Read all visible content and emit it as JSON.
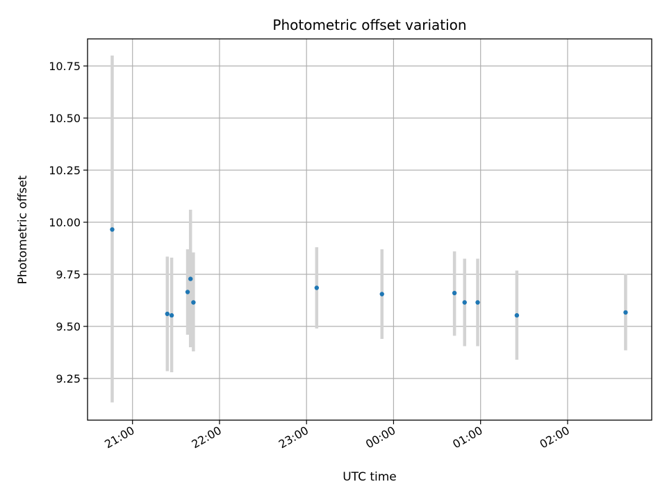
{
  "chart_data": {
    "type": "scatter",
    "title": "Photometric offset variation",
    "xlabel": "UTC time",
    "ylabel": "Photometric offset",
    "x_axis": {
      "kind": "time",
      "start": "20:29",
      "end": "02:58",
      "ticks": [
        {
          "t": "21:00",
          "label": "21:00"
        },
        {
          "t": "22:00",
          "label": "22:00"
        },
        {
          "t": "23:00",
          "label": "23:00"
        },
        {
          "t": "00:00",
          "label": "00:00"
        },
        {
          "t": "01:00",
          "label": "01:00"
        },
        {
          "t": "02:00",
          "label": "02:00"
        }
      ]
    },
    "y_axis": {
      "ylim": [
        9.05,
        10.88
      ],
      "ticks": [
        {
          "v": 9.25,
          "label": "9.25"
        },
        {
          "v": 9.5,
          "label": "9.50"
        },
        {
          "v": 9.75,
          "label": "9.75"
        },
        {
          "v": 10.0,
          "label": "10.00"
        },
        {
          "v": 10.25,
          "label": "10.25"
        },
        {
          "v": 10.5,
          "label": "10.50"
        },
        {
          "v": 10.75,
          "label": "10.75"
        }
      ]
    },
    "grid": true,
    "colors": {
      "point": "#1f77b4",
      "errorbar": "#d3d3d3",
      "grid": "#b0b0b0"
    },
    "points": [
      {
        "t": "20:46",
        "y": 9.965,
        "low": 9.135,
        "high": 10.8
      },
      {
        "t": "21:24",
        "y": 9.56,
        "low": 9.285,
        "high": 9.835
      },
      {
        "t": "21:27",
        "y": 9.553,
        "low": 9.28,
        "high": 9.83
      },
      {
        "t": "21:38",
        "y": 9.665,
        "low": 9.46,
        "high": 9.87
      },
      {
        "t": "21:40",
        "y": 9.728,
        "low": 9.4,
        "high": 10.06
      },
      {
        "t": "21:42",
        "y": 9.615,
        "low": 9.38,
        "high": 9.855
      },
      {
        "t": "23:07",
        "y": 9.685,
        "low": 9.49,
        "high": 9.88
      },
      {
        "t": "23:52",
        "y": 9.655,
        "low": 9.44,
        "high": 9.87
      },
      {
        "t": "00:42",
        "y": 9.66,
        "low": 9.455,
        "high": 9.86
      },
      {
        "t": "00:49",
        "y": 9.615,
        "low": 9.405,
        "high": 9.825
      },
      {
        "t": "00:58",
        "y": 9.615,
        "low": 9.405,
        "high": 9.825
      },
      {
        "t": "01:25",
        "y": 9.553,
        "low": 9.34,
        "high": 9.768
      },
      {
        "t": "02:40",
        "y": 9.567,
        "low": 9.385,
        "high": 9.752
      }
    ]
  }
}
